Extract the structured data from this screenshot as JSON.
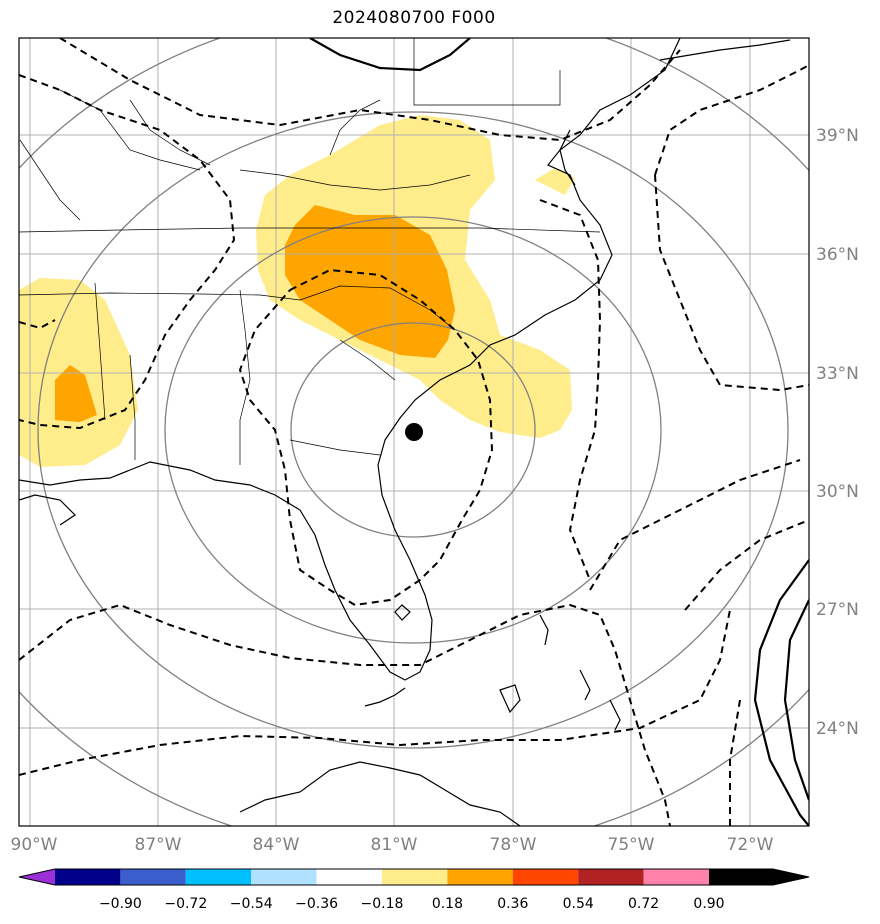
{
  "title": "2024080700 F000",
  "lat_labels": [
    "39°N",
    "36°N",
    "33°N",
    "30°N",
    "27°N",
    "24°N"
  ],
  "lon_labels": [
    "90°W",
    "87°W",
    "84°W",
    "81°W",
    "78°W",
    "75°W",
    "72°W"
  ],
  "colorbar": {
    "ticks": [
      "−0.90",
      "−0.72",
      "−0.54",
      "−0.36",
      "−0.18",
      "0.18",
      "0.36",
      "0.54",
      "0.72",
      "0.90"
    ],
    "colors": [
      "#9b30d9",
      "#00008b",
      "#3a5fcd",
      "#00bfff",
      "#b0e2ff",
      "#ffffff",
      "#ffec8b",
      "#ffa500",
      "#ff4500",
      "#b22222",
      "#ff82ab"
    ]
  },
  "marker": {
    "label": "center-point",
    "lon": -80.5,
    "lat": 31.5
  },
  "fill_colors": {
    "low": "#ffec8b",
    "mid": "#ffa500"
  }
}
